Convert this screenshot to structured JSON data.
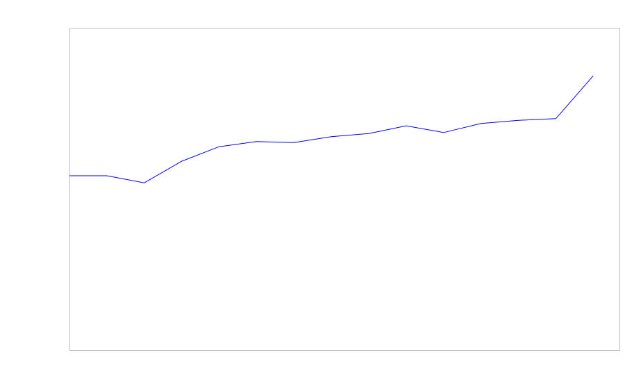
{
  "chart_data": {
    "type": "line",
    "title": "",
    "xlabel": "",
    "ylabel": "",
    "x": [
      1,
      2,
      3,
      4,
      5,
      6,
      7,
      8,
      9,
      10,
      11,
      12,
      13,
      14,
      15
    ],
    "series": [
      {
        "values": [
          54.1,
          54.1,
          51.9,
          58.6,
          63.1,
          64.7,
          64.4,
          66.2,
          67.2,
          69.6,
          67.5,
          70.3,
          71.3,
          71.8,
          85.1
        ],
        "color": "#0000ff"
      }
    ],
    "xlim": [
      1,
      15.7
    ],
    "ylim": [
      0,
      100
    ],
    "grid": false,
    "legend": "none",
    "frame_color": "#c0c0c0"
  }
}
